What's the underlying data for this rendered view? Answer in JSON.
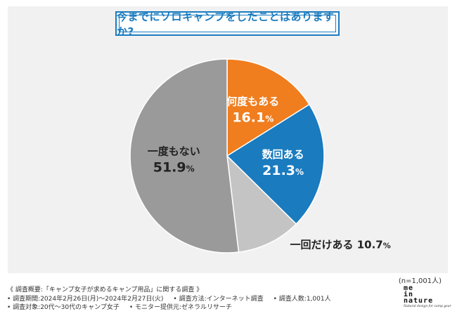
{
  "title": "今までにソロキャンプをしたことはありますか?",
  "sample_note": "(n=1,001人)",
  "chart_data": {
    "type": "pie",
    "title": "今までにソロキャンプをしたことはありますか?",
    "unit": "%",
    "slices": [
      {
        "label": "何度もある",
        "value": 16.1,
        "color": "#f07d1e"
      },
      {
        "label": "数回ある",
        "value": 21.3,
        "color": "#1a7bbf"
      },
      {
        "label": "一回だけある",
        "value": 10.7,
        "color": "#c4c4c4"
      },
      {
        "label": "一度もない",
        "value": 51.9,
        "color": "#9a9a9a"
      }
    ]
  },
  "survey": {
    "heading": "《 調査概要:「キャンプ女子が求めるキャンプ用品」に関する調査 》",
    "period": "• 調査期間:2024年2月26日(月)〜2024年2月27日(火)",
    "method": "• 調査方法:インターネット調査",
    "count": "• 調査人数:1,001人",
    "target": "• 調査対象:20代〜30代のキャンプ女子",
    "provider": "• モニター提供元:ゼネラルリサーチ"
  },
  "logo": {
    "line1": "me",
    "line2": "in",
    "line3": "nature",
    "tagline": "Natural design for camp gear"
  }
}
